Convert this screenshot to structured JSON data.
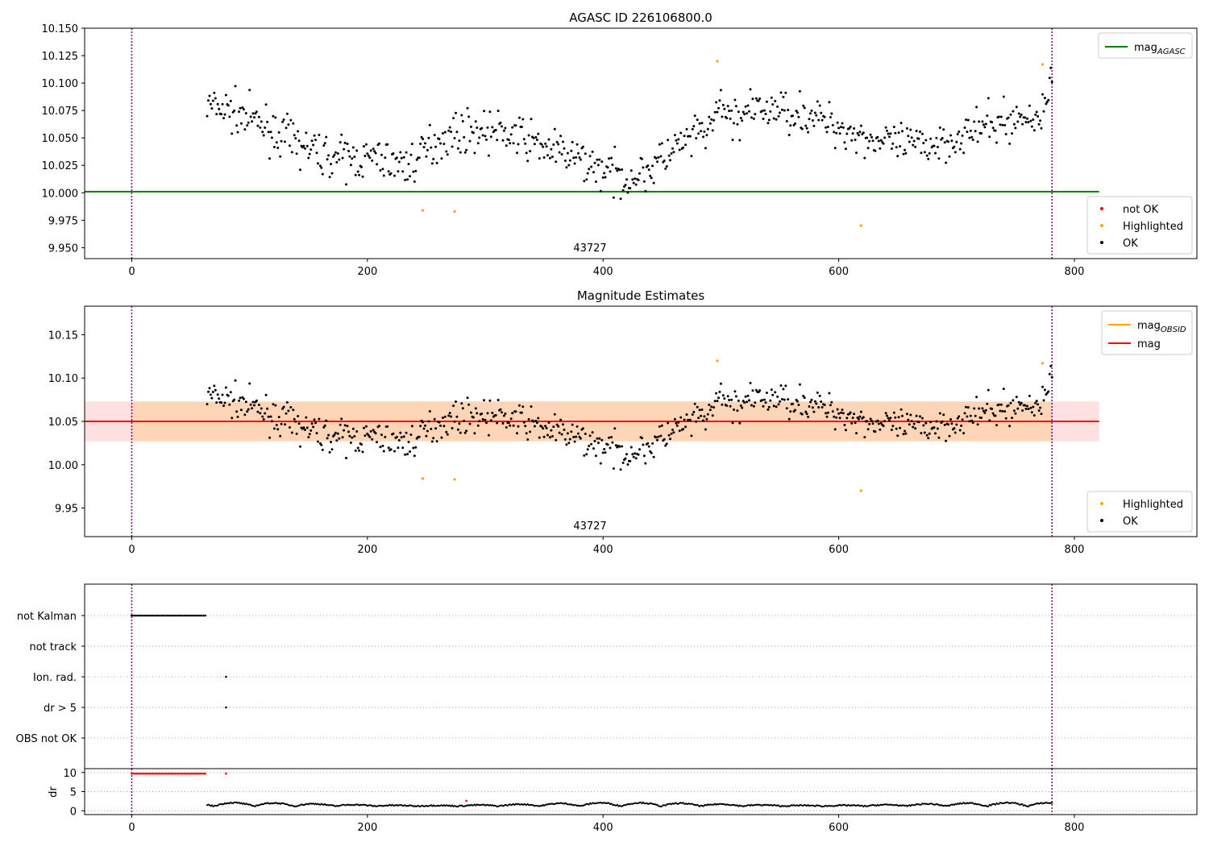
{
  "chart_data": [
    {
      "type": "scatter",
      "title": "AGASC ID 226106800.0",
      "xlim": [
        -40,
        904
      ],
      "ylim": [
        9.94,
        10.15
      ],
      "xticks": [
        0,
        200,
        400,
        600,
        800
      ],
      "yticks": [
        9.95,
        9.975,
        10.0,
        10.025,
        10.05,
        10.075,
        10.1,
        10.125,
        10.15
      ],
      "ytick_labels": [
        "9.950",
        "9.975",
        "10.000",
        "10.025",
        "10.050",
        "10.075",
        "10.100",
        "10.125",
        "10.150"
      ],
      "vlines": [
        0,
        781
      ],
      "annotation": {
        "text": "43727",
        "x": 391,
        "y": 9.945
      },
      "lines": [
        {
          "name": "mag_AGASC",
          "x": [
            -40,
            821
          ],
          "y": [
            10.001,
            10.001
          ],
          "color": "#008000"
        }
      ],
      "series": [
        {
          "name": "not OK",
          "color": "#ff0000",
          "x": [],
          "y": []
        },
        {
          "name": "Highlighted",
          "color": "#ffa500",
          "x": [
            247,
            274,
            497,
            619,
            773
          ],
          "y": [
            9.984,
            9.983,
            10.12,
            9.97,
            10.117
          ]
        },
        {
          "name": "OK",
          "color": "#000000",
          "generated": "~700 points between x=64 and x=781, y≈10.0–10.11"
        }
      ],
      "legend_top": {
        "position": "top-right",
        "entries": [
          {
            "label": "mag",
            "sub": "AGASC",
            "color": "#008000"
          }
        ]
      },
      "legend_bottom": {
        "position": "bottom-right",
        "entries": [
          {
            "label": "not OK",
            "color": "#ff0000"
          },
          {
            "label": "Highlighted",
            "color": "#ffa500"
          },
          {
            "label": "OK",
            "color": "#000000"
          }
        ]
      }
    },
    {
      "type": "scatter",
      "title": "Magnitude Estimates",
      "xlim": [
        -40,
        904
      ],
      "ylim": [
        9.917,
        10.183
      ],
      "xticks": [
        0,
        200,
        400,
        600,
        800
      ],
      "yticks": [
        9.95,
        10.0,
        10.05,
        10.1,
        10.15
      ],
      "ytick_labels": [
        "9.95",
        "10.00",
        "10.05",
        "10.10",
        "10.15"
      ],
      "vlines": [
        0,
        781
      ],
      "annotation": {
        "text": "43727",
        "x": 391,
        "y": 9.925
      },
      "band_obsid": {
        "x": [
          0,
          781
        ],
        "y": [
          10.027,
          10.073
        ],
        "color": "#ffa500"
      },
      "band_mag": {
        "x": [
          -40,
          821
        ],
        "y": [
          10.027,
          10.073
        ],
        "color": "#ff0000"
      },
      "lines": [
        {
          "name": "mag_OBSID",
          "x": [
            0,
            781
          ],
          "y": [
            10.05,
            10.05
          ],
          "color": "#ffa500"
        },
        {
          "name": "mag",
          "x": [
            -40,
            821
          ],
          "y": [
            10.05,
            10.05
          ],
          "color": "#ff0000"
        }
      ],
      "series": [
        {
          "name": "Highlighted",
          "color": "#ffa500",
          "x": [
            247,
            274,
            497,
            619,
            773
          ],
          "y": [
            9.984,
            9.983,
            10.12,
            9.97,
            10.117
          ]
        },
        {
          "name": "OK",
          "color": "#000000",
          "generated": "same as panel 1"
        }
      ],
      "legend_top": {
        "position": "top-right",
        "entries": [
          {
            "label": "mag",
            "sub": "OBSID",
            "color": "#ffa500"
          },
          {
            "label": "mag",
            "sub": "",
            "color": "#ff0000"
          }
        ]
      },
      "legend_bottom": {
        "position": "bottom-right",
        "entries": [
          {
            "label": "Highlighted",
            "color": "#ffa500"
          },
          {
            "label": "OK",
            "color": "#000000"
          }
        ]
      }
    },
    {
      "type": "scatter",
      "title": "",
      "xlim": [
        -40,
        904
      ],
      "categories": [
        "not Kalman",
        "not track",
        "Ion. rad.",
        "dr > 5",
        "OBS not OK"
      ],
      "vlines": [
        0,
        781
      ],
      "flags": [
        {
          "category": "not Kalman",
          "x_from": 0,
          "x_to": 63,
          "step": 1.6
        },
        {
          "category": "Ion. rad.",
          "x": [
            80
          ]
        },
        {
          "category": "dr > 5",
          "x": [
            80
          ]
        }
      ]
    },
    {
      "type": "scatter",
      "title": "",
      "xlim": [
        -40,
        904
      ],
      "ylim": [
        -1,
        11
      ],
      "ylabel": "dr",
      "xticks": [
        0,
        200,
        400,
        600,
        800
      ],
      "yticks": [
        0,
        5,
        10
      ],
      "ytick_labels": [
        "0",
        "5",
        "10"
      ],
      "vlines": [
        0,
        781
      ],
      "red_points": {
        "x_from": 0,
        "x_to": 63,
        "y": 9.7,
        "extra": [
          [
            80,
            9.7
          ],
          [
            284,
            2.6
          ]
        ]
      },
      "dr_series": {
        "generated": "y≈0–2.8 between x=64 and x=781"
      }
    }
  ]
}
